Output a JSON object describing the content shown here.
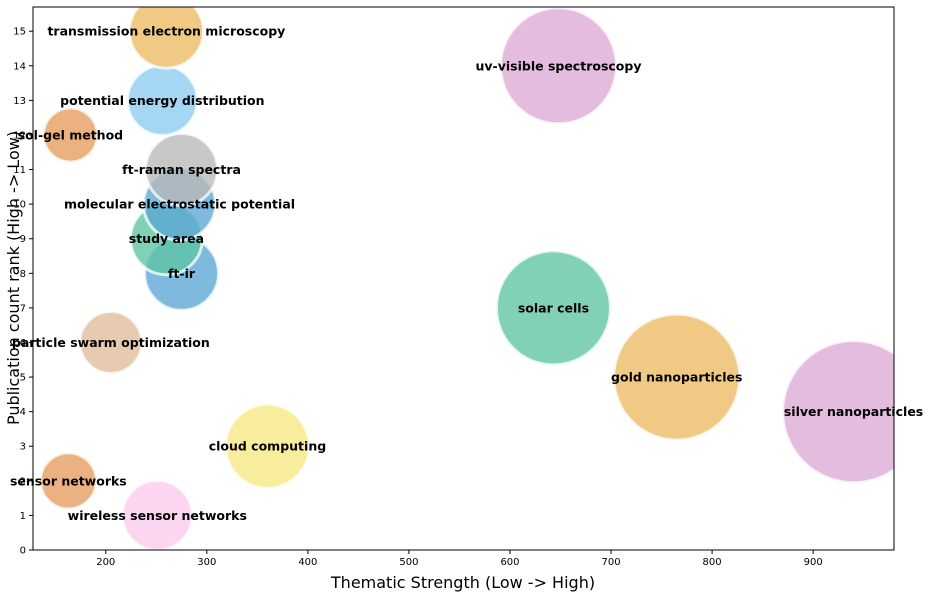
{
  "chart_data": {
    "type": "scatter",
    "xlabel": "Thematic Strength (Low -> High)",
    "ylabel": "Publication count rank (High -> Low)",
    "xlim": [
      128,
      980
    ],
    "ylim": [
      0,
      15.7
    ],
    "x_ticks": [
      200,
      300,
      400,
      500,
      600,
      700,
      800,
      900
    ],
    "y_ticks": [
      0,
      1,
      2,
      3,
      4,
      5,
      6,
      7,
      8,
      9,
      10,
      11,
      12,
      13,
      14,
      15
    ],
    "grid": false,
    "legend": "none",
    "series": [
      {
        "label": "wireless sensor networks",
        "x": 251,
        "y": 1,
        "size": 35,
        "color": "#fbc9ec"
      },
      {
        "label": "sensor networks",
        "x": 163,
        "y": 2,
        "size": 28,
        "color": "#e69b5e"
      },
      {
        "label": "cloud computing",
        "x": 360,
        "y": 3,
        "size": 42,
        "color": "#f5e880"
      },
      {
        "label": "silver nanoparticles",
        "x": 940,
        "y": 4,
        "size": 71,
        "color": "#dca9d4"
      },
      {
        "label": "gold nanoparticles",
        "x": 765,
        "y": 5,
        "size": 63,
        "color": "#ecba62"
      },
      {
        "label": "particle swarm optimization",
        "x": 205,
        "y": 6,
        "size": 31,
        "color": "#e0bd9a"
      },
      {
        "label": "solar cells",
        "x": 643,
        "y": 7,
        "size": 57,
        "color": "#5ec4a3"
      },
      {
        "label": "ft-ir",
        "x": 275,
        "y": 8,
        "size": 37,
        "color": "#5aa6d4"
      },
      {
        "label": "study area",
        "x": 260,
        "y": 9,
        "size": 36,
        "color": "#5ec4a3"
      },
      {
        "label": "molecular electrostatic potential",
        "x": 273,
        "y": 10,
        "size": 36,
        "color": "#5aa6d4"
      },
      {
        "label": "ft-raman spectra",
        "x": 275,
        "y": 11,
        "size": 36,
        "color": "#b8b8b8"
      },
      {
        "label": "sol-gel method",
        "x": 165,
        "y": 12,
        "size": 27,
        "color": "#e69b5e"
      },
      {
        "label": "potential energy distribution",
        "x": 256,
        "y": 13,
        "size": 35,
        "color": "#8ccbf0"
      },
      {
        "label": "uv-visible spectroscopy",
        "x": 648,
        "y": 14,
        "size": 58,
        "color": "#dca9d4"
      },
      {
        "label": "transmission electron microscopy",
        "x": 260,
        "y": 15,
        "size": 37,
        "color": "#ecba62"
      }
    ]
  }
}
